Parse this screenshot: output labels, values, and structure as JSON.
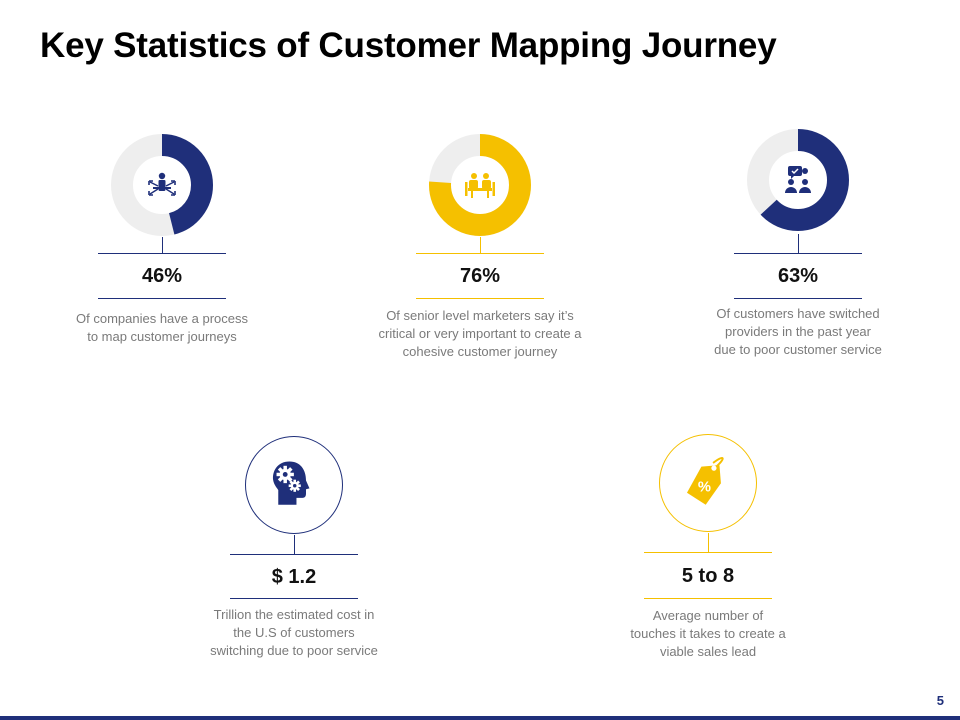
{
  "title": "Key Statistics of Customer Mapping Journey",
  "colors": {
    "navy": "#1f2f7a",
    "yellow": "#f5c000",
    "ring_bg": "#eeeeee"
  },
  "stats": [
    {
      "value": "46%",
      "percent": 46,
      "accent": "#1f2f7a",
      "icon": "user-network-icon",
      "desc": [
        "Of companies have a process",
        "to map customer journeys"
      ]
    },
    {
      "value": "76%",
      "percent": 76,
      "accent": "#f5c000",
      "icon": "meeting-table-icon",
      "desc": [
        "Of senior level marketers say it’s",
        "critical or very important to create a",
        "cohesive customer journey"
      ]
    },
    {
      "value": "63%",
      "percent": 63,
      "accent": "#1f2f7a",
      "icon": "customer-support-icon",
      "desc": [
        "Of customers have switched",
        "providers in the past year",
        "due to poor customer service"
      ]
    },
    {
      "value": "$ 1.2",
      "accent": "#1f2f7a",
      "icon": "head-gears-icon",
      "desc": [
        "Trillion the estimated cost in",
        "the U.S of customers",
        "switching due to poor service"
      ]
    },
    {
      "value": "5 to 8",
      "accent": "#f5c000",
      "icon": "price-tag-percent-icon",
      "desc": [
        "Average number of",
        "touches it takes to create a",
        "viable sales lead"
      ]
    }
  ],
  "page_number": "5"
}
